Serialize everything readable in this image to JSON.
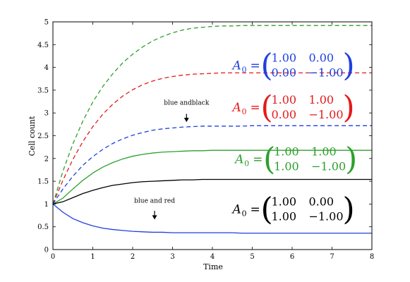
{
  "chart_data": {
    "type": "line",
    "title": "",
    "xlabel": "Time",
    "ylabel": "Cell count",
    "xlim": [
      0,
      8
    ],
    "ylim": [
      0,
      5
    ],
    "xticks": [
      0,
      1,
      2,
      3,
      4,
      5,
      6,
      7,
      8
    ],
    "yticks": [
      0,
      0.5,
      1,
      1.5,
      2,
      2.5,
      3,
      3.5,
      4,
      4.5,
      5
    ],
    "x": [
      0,
      0.25,
      0.5,
      0.75,
      1,
      1.25,
      1.5,
      1.75,
      2,
      2.25,
      2.5,
      2.75,
      3,
      3.25,
      3.5,
      3.75,
      4,
      4.25,
      4.5,
      4.75,
      5,
      5.25,
      5.5,
      5.75,
      6,
      6.25,
      6.5,
      6.75,
      7,
      7.25,
      7.5,
      7.75,
      8
    ],
    "series": [
      {
        "color": "#2ca02c",
        "dash": "dashed",
        "values": [
          1.0,
          1.72,
          2.32,
          2.82,
          3.24,
          3.58,
          3.86,
          4.1,
          4.29,
          4.45,
          4.58,
          4.68,
          4.76,
          4.82,
          4.86,
          4.88,
          4.9,
          4.91,
          4.91,
          4.92,
          4.92,
          4.92,
          4.92,
          4.92,
          4.92,
          4.92,
          4.92,
          4.92,
          4.92,
          4.92,
          4.92,
          4.92,
          4.92
        ]
      },
      {
        "color": "#e31a1c",
        "dash": "dashed",
        "values": [
          1.0,
          1.52,
          1.98,
          2.37,
          2.7,
          2.97,
          3.19,
          3.37,
          3.51,
          3.62,
          3.7,
          3.76,
          3.8,
          3.83,
          3.85,
          3.86,
          3.87,
          3.88,
          3.88,
          3.88,
          3.88,
          3.88,
          3.88,
          3.88,
          3.88,
          3.88,
          3.88,
          3.88,
          3.88,
          3.88,
          3.88,
          3.88,
          3.88
        ]
      },
      {
        "color": "#1f3fe0",
        "dash": "dashed",
        "values": [
          1.0,
          1.33,
          1.61,
          1.85,
          2.04,
          2.2,
          2.33,
          2.43,
          2.51,
          2.57,
          2.62,
          2.65,
          2.67,
          2.69,
          2.7,
          2.71,
          2.71,
          2.71,
          2.71,
          2.71,
          2.72,
          2.72,
          2.72,
          2.72,
          2.72,
          2.72,
          2.72,
          2.72,
          2.72,
          2.72,
          2.72,
          2.72,
          2.72
        ]
      },
      {
        "color": "#2ca02c",
        "dash": "solid",
        "values": [
          1.0,
          1.13,
          1.33,
          1.52,
          1.68,
          1.81,
          1.91,
          1.99,
          2.05,
          2.09,
          2.12,
          2.14,
          2.15,
          2.16,
          2.17,
          2.17,
          2.18,
          2.18,
          2.18,
          2.18,
          2.18,
          2.18,
          2.18,
          2.18,
          2.18,
          2.18,
          2.18,
          2.18,
          2.18,
          2.18,
          2.18,
          2.18,
          2.18
        ]
      },
      {
        "color": "#000000",
        "dash": "solid",
        "values": [
          1.0,
          1.05,
          1.14,
          1.23,
          1.3,
          1.36,
          1.41,
          1.44,
          1.47,
          1.49,
          1.5,
          1.51,
          1.52,
          1.53,
          1.53,
          1.54,
          1.54,
          1.54,
          1.54,
          1.54,
          1.54,
          1.54,
          1.54,
          1.54,
          1.54,
          1.54,
          1.54,
          1.54,
          1.54,
          1.54,
          1.54,
          1.54,
          1.54
        ]
      },
      {
        "color": "#1f3fe0",
        "dash": "solid",
        "values": [
          1.0,
          0.82,
          0.68,
          0.59,
          0.52,
          0.47,
          0.44,
          0.42,
          0.4,
          0.39,
          0.38,
          0.38,
          0.37,
          0.37,
          0.37,
          0.37,
          0.37,
          0.37,
          0.37,
          0.36,
          0.36,
          0.36,
          0.36,
          0.36,
          0.36,
          0.36,
          0.36,
          0.36,
          0.36,
          0.36,
          0.36,
          0.36,
          0.36
        ]
      }
    ],
    "matrices": [
      {
        "color": "#1f3fe0",
        "lhs": "A",
        "sub": "0",
        "rows": [
          [
            "1.00",
            "0.00"
          ],
          [
            "0.00",
            "−1.00"
          ]
        ]
      },
      {
        "color": "#e31a1c",
        "lhs": "A",
        "sub": "0",
        "rows": [
          [
            "1.00",
            "1.00"
          ],
          [
            "0.00",
            "−1.00"
          ]
        ]
      },
      {
        "color": "#2ca02c",
        "lhs": "A",
        "sub": "0",
        "rows": [
          [
            "1.00",
            "1.00"
          ],
          [
            "1.00",
            "−1.00"
          ]
        ]
      },
      {
        "color": "#000000",
        "lhs": "A",
        "sub": "0",
        "rows": [
          [
            "1.00",
            "0.00"
          ],
          [
            "1.00",
            "−1.00"
          ]
        ]
      }
    ],
    "annotations": [
      {
        "text": "blue  andblack",
        "x": 3.35,
        "y_text": 3.18,
        "arrow_from": 2.98,
        "arrow_to": 2.8
      },
      {
        "text": "blue  and  red",
        "x": 2.55,
        "y_text": 1.03,
        "arrow_from": 0.85,
        "arrow_to": 0.66
      }
    ],
    "grid": false,
    "legend": "none"
  }
}
